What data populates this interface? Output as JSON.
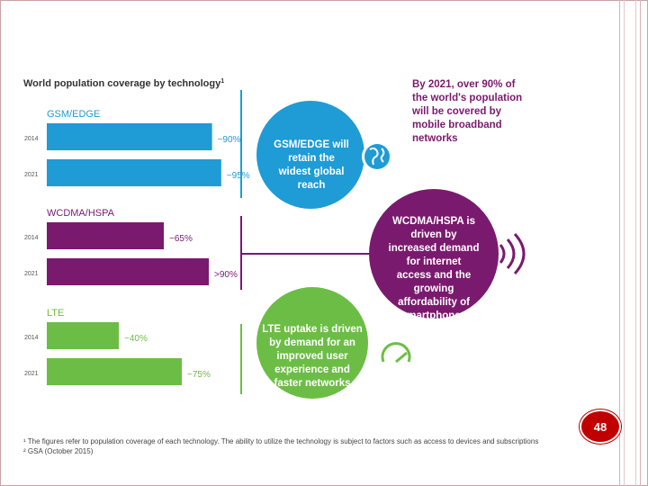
{
  "chart_data": {
    "type": "bar",
    "title": "World population coverage by technology",
    "title_sup": "1",
    "xlim": [
      0,
      100
    ],
    "groups": [
      {
        "name": "GSM/EDGE",
        "color": "#1f9bd6",
        "bars": [
          {
            "year": "2014",
            "value": 90,
            "label": "~90%"
          },
          {
            "year": "2021",
            "value": 95,
            "label": "~95%"
          }
        ]
      },
      {
        "name": "WCDMA/HSPA",
        "color": "#7a1a6e",
        "bars": [
          {
            "year": "2014",
            "value": 65,
            "label": "~65%"
          },
          {
            "year": "2021",
            "value": 90,
            "label": ">90%"
          }
        ]
      },
      {
        "name": "LTE",
        "color": "#6cbd45",
        "bars": [
          {
            "year": "2014",
            "value": 40,
            "label": "~40%"
          },
          {
            "year": "2021",
            "value": 75,
            "label": "~75%"
          }
        ]
      }
    ],
    "callouts": [
      "GSM/EDGE will retain the widest global reach",
      "WCDMA/HSPA is driven by increased demand for internet access and the growing affordability of smartphones",
      "LTE uptake is driven by demand for an improved user experience and faster networks"
    ],
    "headline": "By 2021, over 90% of the world's population will be covered by mobile broadband networks"
  },
  "footnotes": [
    "¹ The figures refer to population coverage of each technology. The ability to utilize the technology is subject to factors such as access to devices and subscriptions",
    "² GSA (October 2015)"
  ],
  "page_number": "48"
}
